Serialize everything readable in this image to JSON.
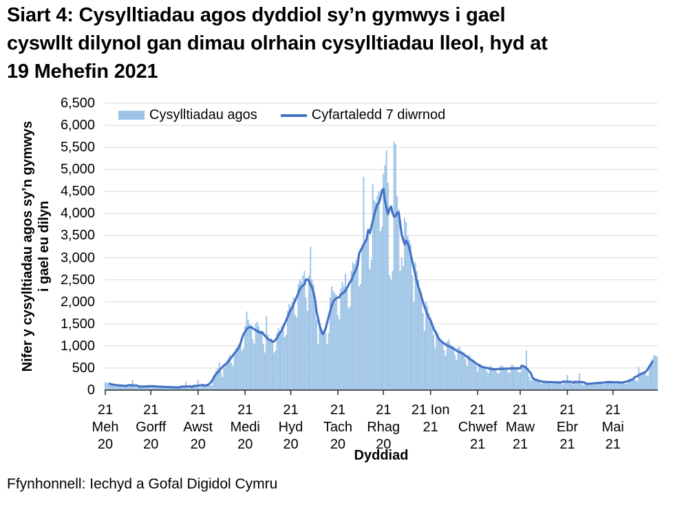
{
  "header": {
    "title_lines": [
      "Siart 4: Cysylltiadau agos dyddiol sy’n gymwys i gael",
      "cyswllt dilynol gan dimau olrhain cysylltiadau lleol, hyd at",
      "19 Mehefin 2021"
    ]
  },
  "footer": {
    "source": "Ffynhonnell: Iechyd a Gofal Digidol Cymru"
  },
  "chart_data": {
    "type": "bar",
    "title": "Siart 4: Cysylltiadau agos dyddiol sy’n gymwys i gael cyswllt dilynol gan dimau olrhain cysylltiadau lleol, hyd at 19 Mehefin 2021",
    "xlabel": "Dyddiad",
    "ylabel_lines": [
      "Nifer y cysylltiadau agos sy’n gymwys",
      "i gael eu dilyn"
    ],
    "colors": {
      "bar": "#9DC3E6",
      "line": "#4472C4",
      "grid": "#D9D9D9",
      "axis": "#262626"
    },
    "legend_position": "top-inside",
    "grid": "horizontal-only",
    "y_axis": {
      "max": 6500,
      "step": 500,
      "labels": [
        "0",
        "500",
        "1,000",
        "1,500",
        "2,000",
        "2,500",
        "3,000",
        "3,500",
        "4,000",
        "4,500",
        "5,000",
        "5,500",
        "6,000",
        "6,500"
      ]
    },
    "x_axis": {
      "title": "Dyddiad",
      "unit": "day",
      "ticks": [
        {
          "day": 0,
          "lines": [
            "21",
            "Meh",
            "20"
          ]
        },
        {
          "day": 30,
          "lines": [
            "21",
            "Gorff",
            "20"
          ]
        },
        {
          "day": 61,
          "lines": [
            "21",
            "Awst",
            "20"
          ]
        },
        {
          "day": 92,
          "lines": [
            "21",
            "Medi",
            "20"
          ]
        },
        {
          "day": 122,
          "lines": [
            "21",
            "Hyd",
            "20"
          ]
        },
        {
          "day": 153,
          "lines": [
            "21",
            "Tach",
            "20"
          ]
        },
        {
          "day": 183,
          "lines": [
            "21",
            "Rhag",
            "20"
          ]
        },
        {
          "day": 214,
          "lines": [
            "21 Ion",
            "21"
          ]
        },
        {
          "day": 245,
          "lines": [
            "21",
            "Chwef",
            "21"
          ]
        },
        {
          "day": 273,
          "lines": [
            "21",
            "Maw",
            "21"
          ]
        },
        {
          "day": 304,
          "lines": [
            "21",
            "Ebr",
            "21"
          ]
        },
        {
          "day": 334,
          "lines": [
            "21",
            "Mai",
            "21"
          ]
        }
      ]
    },
    "series": [
      {
        "name": "Cysylltiadau agos",
        "kind": "bar",
        "color": "#9DC3E6",
        "values": [
          180,
          170,
          160,
          150,
          140,
          120,
          95,
          85,
          120,
          125,
          115,
          110,
          100,
          80,
          70,
          100,
          105,
          100,
          230,
          90,
          70,
          60,
          90,
          92,
          88,
          84,
          80,
          65,
          65,
          100,
          110,
          100,
          90,
          85,
          70,
          55,
          85,
          88,
          82,
          78,
          72,
          60,
          48,
          72,
          75,
          70,
          68,
          64,
          52,
          45,
          68,
          70,
          66,
          190,
          60,
          50,
          55,
          80,
          85,
          80,
          75,
          230,
          60,
          70,
          105,
          115,
          115,
          120,
          125,
          105,
          110,
          210,
          300,
          445,
          500,
          625,
          420,
          300,
          500,
          620,
          680,
          740,
          800,
          620,
          550,
          850,
          950,
          1000,
          1060,
          1120,
          900,
          950,
          1450,
          1780,
          1600,
          1500,
          1450,
          1150,
          1050,
          1500,
          1550,
          1450,
          1350,
          1300,
          1050,
          850,
          1670,
          1250,
          1150,
          1100,
          1050,
          850,
          900,
          1300,
          1400,
          1350,
          1450,
          1500,
          1200,
          1250,
          1800,
          1950,
          1900,
          2000,
          2100,
          1700,
          1650,
          2400,
          2500,
          2450,
          2600,
          2700,
          2100,
          1800,
          2600,
          3250,
          2500,
          2400,
          2100,
          1600,
          1050,
          1450,
          1400,
          1350,
          1300,
          1300,
          1050,
          1300,
          2100,
          2350,
          2250,
          2200,
          2150,
          1700,
          1600,
          2300,
          2450,
          2350,
          2640,
          2300,
          1850,
          1900,
          2700,
          2900,
          2850,
          2950,
          3000,
          2350,
          2400,
          3300,
          4830,
          3300,
          3400,
          3500,
          2750,
          2950,
          4680,
          4300,
          4250,
          4400,
          4500,
          3600,
          3700,
          4900,
          5100,
          5430,
          4700,
          2600,
          2500,
          2700,
          5630,
          5570,
          4400,
          4100,
          2700,
          3000,
          2800,
          3900,
          3800,
          3500,
          3400,
          3300,
          2600,
          2000,
          2900,
          2700,
          2500,
          2300,
          2200,
          1750,
          1350,
          2000,
          1900,
          1750,
          1650,
          1550,
          1250,
          950,
          1350,
          1300,
          1200,
          1150,
          1100,
          900,
          780,
          1100,
          1150,
          1050,
          1000,
          980,
          800,
          680,
          950,
          980,
          900,
          870,
          850,
          700,
          550,
          800,
          780,
          720,
          680,
          660,
          550,
          420,
          600,
          590,
          560,
          540,
          520,
          430,
          380,
          540,
          550,
          500,
          480,
          470,
          390,
          380,
          550,
          560,
          520,
          490,
          480,
          400,
          390,
          560,
          570,
          530,
          500,
          490,
          410,
          400,
          570,
          560,
          540,
          900,
          420,
          300,
          220,
          300,
          280,
          250,
          230,
          210,
          170,
          140,
          210,
          215,
          200,
          190,
          185,
          150,
          135,
          200,
          205,
          190,
          185,
          175,
          145,
          125,
          190,
          195,
          340,
          180,
          170,
          140,
          115,
          175,
          180,
          170,
          370,
          155,
          130,
          105,
          160,
          165,
          155,
          150,
          145,
          120,
          120,
          185,
          190,
          175,
          170,
          165,
          135,
          135,
          210,
          215,
          195,
          185,
          180,
          150,
          130,
          200,
          205,
          185,
          175,
          170,
          140,
          140,
          220,
          260,
          250,
          260,
          270,
          220,
          200,
          520,
          380,
          370,
          390,
          420,
          340,
          320,
          560,
          620,
          700,
          800,
          780,
          760
        ]
      },
      {
        "name": "Cyfartaledd 7 diwrnod",
        "kind": "line",
        "color": "#4472C4",
        "window": 7,
        "derived": "centered 7-day mean of Cysylltiadau agos"
      }
    ]
  }
}
